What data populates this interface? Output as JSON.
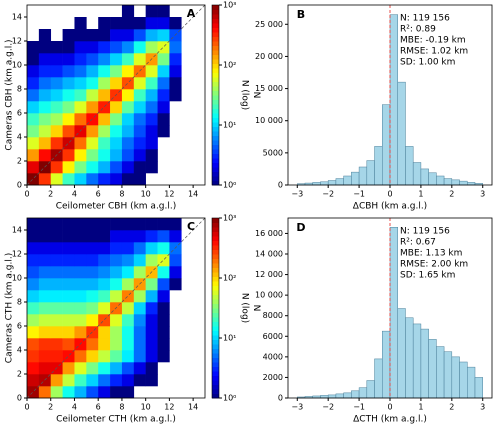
{
  "chart_data": [
    {
      "type": "heatmap",
      "panel_label": "A",
      "xlabel": "Ceilometer CBH (km a.g.l.)",
      "ylabel": "Cameras CBH (km a.g.l.)",
      "xlim": [
        0,
        15
      ],
      "ylim": [
        0,
        15
      ],
      "xticks": [
        0,
        2,
        4,
        6,
        8,
        10,
        12,
        14
      ],
      "yticks": [
        0,
        2,
        4,
        6,
        8,
        10,
        12,
        14
      ],
      "identity_line": true,
      "x_bins": [
        0,
        1,
        2,
        3,
        4,
        5,
        6,
        7,
        8,
        9,
        10,
        11,
        12,
        13
      ],
      "y_bins": [
        0,
        1,
        2,
        3,
        4,
        5,
        6,
        7,
        8,
        9,
        10,
        11,
        12,
        13,
        14,
        15
      ],
      "values": [
        [
          1000,
          300,
          60,
          20,
          10,
          5,
          3,
          2,
          1,
          1,
          null,
          null,
          null
        ],
        [
          500,
          1000,
          300,
          80,
          30,
          15,
          8,
          4,
          2,
          1,
          1,
          null,
          null
        ],
        [
          150,
          400,
          800,
          300,
          80,
          30,
          15,
          8,
          4,
          2,
          1,
          null,
          null
        ],
        [
          60,
          120,
          300,
          600,
          200,
          60,
          20,
          10,
          5,
          3,
          2,
          null,
          null
        ],
        [
          30,
          50,
          100,
          250,
          500,
          150,
          40,
          15,
          8,
          4,
          2,
          1,
          null
        ],
        [
          20,
          30,
          40,
          80,
          200,
          400,
          120,
          30,
          10,
          5,
          3,
          1,
          null
        ],
        [
          10,
          15,
          20,
          30,
          60,
          150,
          350,
          100,
          25,
          10,
          5,
          2,
          null
        ],
        [
          5,
          8,
          10,
          15,
          20,
          50,
          120,
          300,
          80,
          20,
          8,
          3,
          1
        ],
        [
          3,
          5,
          6,
          8,
          10,
          15,
          40,
          100,
          250,
          60,
          20,
          5,
          1
        ],
        [
          2,
          3,
          3,
          4,
          5,
          8,
          15,
          30,
          80,
          200,
          60,
          10,
          2
        ],
        [
          1,
          2,
          2,
          2,
          3,
          4,
          6,
          10,
          20,
          60,
          150,
          30,
          3
        ],
        [
          1,
          1,
          1,
          1,
          2,
          2,
          3,
          4,
          6,
          15,
          40,
          60,
          5
        ],
        [
          null,
          1,
          null,
          1,
          1,
          1,
          1,
          2,
          2,
          4,
          8,
          10,
          4
        ],
        [
          null,
          null,
          null,
          null,
          1,
          null,
          1,
          1,
          1,
          1,
          2,
          2,
          1
        ],
        [
          null,
          null,
          null,
          null,
          null,
          null,
          null,
          null,
          1,
          null,
          1,
          1,
          null
        ]
      ],
      "colorbar": {
        "label": "N (log)",
        "log": true,
        "colormap": "jet",
        "lim": [
          1,
          1000
        ],
        "ticks": [
          {
            "value": 1,
            "label": "10⁰"
          },
          {
            "value": 10,
            "label": "10¹"
          },
          {
            "value": 100,
            "label": "10²"
          },
          {
            "value": 1000,
            "label": "10³"
          }
        ]
      }
    },
    {
      "type": "histogram",
      "panel_label": "B",
      "xlabel": "ΔCBH (km a.g.l.)",
      "ylabel": "N",
      "color": "#a6d6e8",
      "edgecolor": "#4a7f99",
      "bins": [
        -3,
        -2.75,
        -2.5,
        -2.25,
        -2,
        -1.75,
        -1.5,
        -1.25,
        -1,
        -0.75,
        -0.5,
        -0.25,
        0,
        0.25,
        0.5,
        0.75,
        1,
        1.25,
        1.5,
        1.75,
        2,
        2.25,
        2.5,
        2.75,
        3
      ],
      "counts": [
        200,
        300,
        400,
        500,
        700,
        1000,
        1400,
        2000,
        2800,
        3800,
        6000,
        12500,
        26500,
        16000,
        6000,
        3500,
        2500,
        1900,
        1400,
        1000,
        800,
        600,
        400,
        250
      ],
      "xlim": [
        -3.3,
        3.3
      ],
      "ylim": [
        0,
        28000
      ],
      "xticks": [
        {
          "value": -3,
          "label": "−3"
        },
        {
          "value": -2,
          "label": "−2"
        },
        {
          "value": -1,
          "label": "−1"
        },
        0,
        1,
        2,
        3
      ],
      "yticks": [
        0,
        5000,
        {
          "value": 10000,
          "label": "10 000"
        },
        {
          "value": 15000,
          "label": "15 000"
        },
        {
          "value": 20000,
          "label": "20 000"
        },
        {
          "value": 25000,
          "label": "25 000"
        }
      ],
      "vline": {
        "x": 0,
        "color": "#e8403a"
      },
      "annotation": [
        "N: 119 156",
        "R²: 0.89",
        "MBE: -0.19 km",
        "RMSE: 1.02 km",
        "SD: 1.00 km"
      ]
    },
    {
      "type": "heatmap",
      "panel_label": "C",
      "xlabel": "Ceilometer CTH (km a.g.l.)",
      "ylabel": "Cameras CTH (km a.g.l.)",
      "xlim": [
        0,
        15
      ],
      "ylim": [
        0,
        15
      ],
      "xticks": [
        0,
        2,
        4,
        6,
        8,
        10,
        12,
        14
      ],
      "yticks": [
        0,
        2,
        4,
        6,
        8,
        10,
        12,
        14
      ],
      "identity_line": true,
      "x_bins": [
        0,
        1,
        2,
        3,
        4,
        5,
        6,
        7,
        8,
        9,
        10,
        11,
        12,
        13
      ],
      "y_bins": [
        0,
        1,
        2,
        3,
        4,
        5,
        6,
        7,
        8,
        9,
        10,
        11,
        12,
        13,
        14,
        15
      ],
      "values": [
        [
          800,
          200,
          40,
          15,
          8,
          4,
          2,
          1,
          1,
          null,
          null,
          null,
          null
        ],
        [
          600,
          700,
          150,
          50,
          20,
          10,
          5,
          3,
          2,
          1,
          1,
          null,
          null
        ],
        [
          400,
          500,
          500,
          150,
          60,
          30,
          15,
          8,
          4,
          2,
          1,
          null,
          null
        ],
        [
          300,
          350,
          350,
          400,
          200,
          100,
          50,
          25,
          12,
          5,
          2,
          1,
          null
        ],
        [
          250,
          300,
          300,
          250,
          400,
          200,
          100,
          40,
          15,
          5,
          2,
          1,
          null
        ],
        [
          80,
          100,
          100,
          100,
          150,
          300,
          100,
          40,
          15,
          5,
          2,
          1,
          null
        ],
        [
          40,
          50,
          50,
          50,
          50,
          80,
          250,
          60,
          20,
          6,
          2,
          1,
          null
        ],
        [
          20,
          25,
          25,
          25,
          25,
          30,
          60,
          200,
          50,
          10,
          3,
          1,
          null
        ],
        [
          10,
          12,
          12,
          12,
          12,
          15,
          20,
          50,
          180,
          40,
          8,
          2,
          null
        ],
        [
          6,
          8,
          8,
          8,
          8,
          8,
          10,
          15,
          40,
          150,
          30,
          4,
          1
        ],
        [
          4,
          5,
          5,
          5,
          5,
          5,
          6,
          8,
          12,
          40,
          120,
          15,
          2
        ],
        [
          3,
          3,
          3,
          3,
          3,
          3,
          4,
          5,
          6,
          10,
          40,
          60,
          4
        ],
        [
          2,
          2,
          2,
          2,
          2,
          2,
          2,
          3,
          3,
          5,
          10,
          15,
          5
        ],
        [
          1,
          1,
          1,
          1,
          1,
          1,
          1,
          2,
          2,
          2,
          3,
          4,
          2
        ],
        [
          1,
          1,
          1,
          1,
          1,
          1,
          1,
          1,
          1,
          1,
          1,
          1,
          1
        ]
      ],
      "colorbar": {
        "label": "N (log)",
        "log": true,
        "colormap": "jet",
        "lim": [
          1,
          1000
        ],
        "ticks": [
          {
            "value": 1,
            "label": "10⁰"
          },
          {
            "value": 10,
            "label": "10¹"
          },
          {
            "value": 100,
            "label": "10²"
          },
          {
            "value": 1000,
            "label": "10³"
          }
        ]
      }
    },
    {
      "type": "histogram",
      "panel_label": "D",
      "xlabel": "ΔCTH (km a.g.l.)",
      "ylabel": "N",
      "color": "#a6d6e8",
      "edgecolor": "#4a7f99",
      "bins": [
        -3,
        -2.75,
        -2.5,
        -2.25,
        -2,
        -1.75,
        -1.5,
        -1.25,
        -1,
        -0.75,
        -0.5,
        -0.25,
        0,
        0.25,
        0.5,
        0.75,
        1,
        1.25,
        1.5,
        1.75,
        2,
        2.25,
        2.5,
        2.75,
        3
      ],
      "counts": [
        100,
        150,
        200,
        250,
        300,
        400,
        500,
        700,
        1000,
        1700,
        3800,
        6500,
        16600,
        8700,
        7800,
        7200,
        6700,
        5700,
        5000,
        4500,
        4000,
        3500,
        3000,
        2000
      ],
      "xlim": [
        -3.3,
        3.3
      ],
      "ylim": [
        0,
        17500
      ],
      "xticks": [
        {
          "value": -3,
          "label": "−3"
        },
        {
          "value": -2,
          "label": "−2"
        },
        {
          "value": -1,
          "label": "−1"
        },
        0,
        1,
        2,
        3
      ],
      "yticks": [
        0,
        2000,
        4000,
        6000,
        8000,
        {
          "value": 10000,
          "label": "10 000"
        },
        {
          "value": 12000,
          "label": "12 000"
        },
        {
          "value": 14000,
          "label": "14 000"
        },
        {
          "value": 16000,
          "label": "16 000"
        }
      ],
      "vline": {
        "x": 0,
        "color": "#e8403a"
      },
      "annotation": [
        "N: 119 156",
        "R²: 0.67",
        "MBE: 1.13 km",
        "RMSE: 2.00 km",
        "SD: 1.65 km"
      ]
    }
  ]
}
